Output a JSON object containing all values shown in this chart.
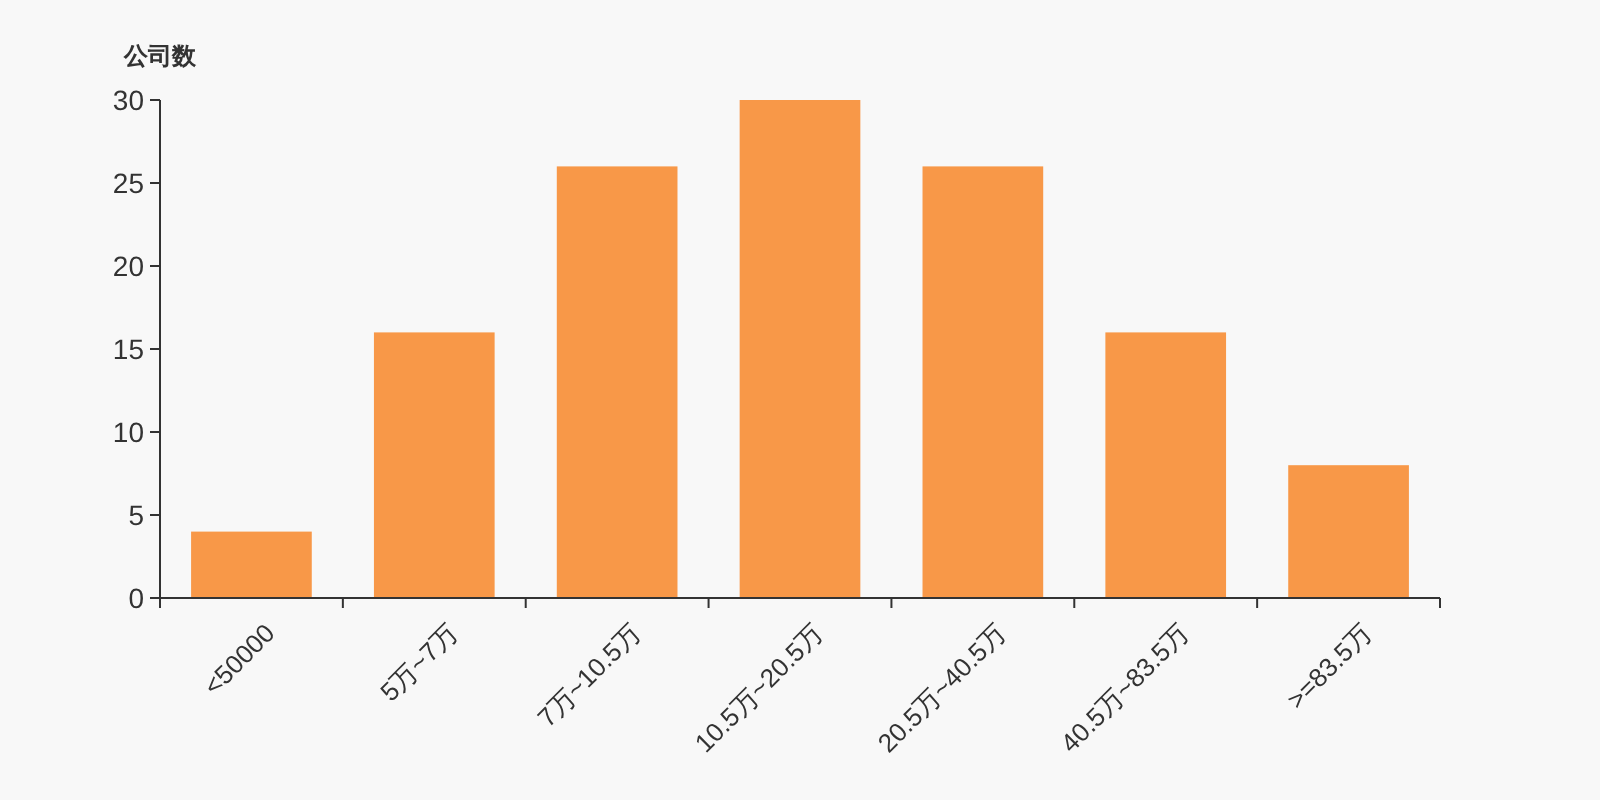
{
  "chart_data": {
    "type": "bar",
    "ylabel": "公司数",
    "categories": [
      "<50000",
      "5万~7万",
      "7万~10.5万",
      "10.5万~20.5万",
      "20.5万~40.5万",
      "40.5万~83.5万",
      ">=83.5万"
    ],
    "values": [
      4,
      16,
      26,
      30,
      26,
      16,
      8
    ],
    "color": "#f89848",
    "ylim": [
      0,
      30
    ],
    "yticks": [
      0,
      5,
      10,
      15,
      20,
      25,
      30
    ],
    "grid": false
  }
}
